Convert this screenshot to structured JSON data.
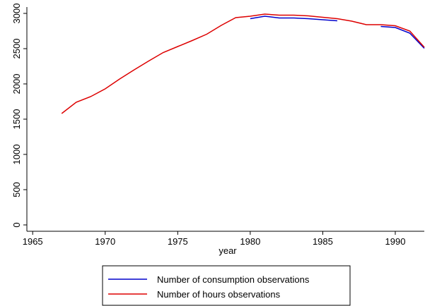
{
  "chart_data": {
    "type": "line",
    "x": [
      1967,
      1968,
      1969,
      1970,
      1971,
      1972,
      1973,
      1974,
      1975,
      1976,
      1977,
      1978,
      1979,
      1980,
      1981,
      1982,
      1983,
      1984,
      1985,
      1986,
      1987,
      1988,
      1989,
      1990,
      1991,
      1992
    ],
    "series": [
      {
        "name": "Number of consumption observations",
        "color": "#0000cc",
        "values": [
          null,
          null,
          null,
          null,
          null,
          null,
          null,
          null,
          null,
          null,
          null,
          null,
          null,
          2925,
          2960,
          2935,
          2935,
          2925,
          2910,
          2895,
          null,
          null,
          2815,
          2800,
          2720,
          2505
        ]
      },
      {
        "name": "Number of hours observations",
        "color": "#dd0000",
        "values": [
          1580,
          1740,
          1820,
          1930,
          2070,
          2200,
          2325,
          2445,
          2530,
          2615,
          2705,
          2830,
          2940,
          2960,
          2990,
          2975,
          2975,
          2965,
          2945,
          2925,
          2890,
          2840,
          2840,
          2825,
          2750,
          2520
        ]
      }
    ],
    "x_label": "year",
    "xlim": [
      1964.6,
      1992
    ],
    "xticks": [
      1965,
      1970,
      1975,
      1980,
      1985,
      1990
    ],
    "ylim": [
      -90,
      3090
    ],
    "yticks": [
      0,
      500,
      1000,
      1500,
      2000,
      2500,
      3000
    ],
    "legend": "bottom"
  }
}
